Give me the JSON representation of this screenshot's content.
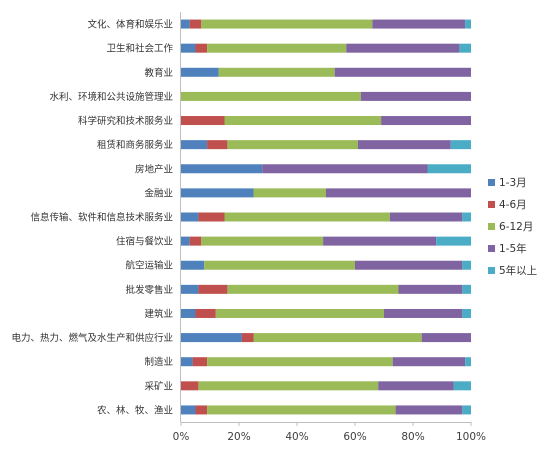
{
  "chart_data": {
    "type": "bar",
    "orientation": "horizontal",
    "stacked": "percent",
    "categories": [
      "文化、体育和娱乐业",
      "卫生和社会工作",
      "教育业",
      "水利、环境和公共设施管理业",
      "科学研究和技术服务业",
      "租赁和商务服务业",
      "房地产业",
      "金融业",
      "信息传输、软件和信息技术服务业",
      "住宿与餐饮业",
      "航空运输业",
      "批发零售业",
      "建筑业",
      "电力、热力、燃气及水生产和供应行业",
      "制造业",
      "采矿业",
      "农、林、牧、渔业"
    ],
    "series": [
      {
        "name": "1-3月",
        "color": "#4f81bd",
        "values": [
          3,
          5,
          13,
          0,
          0,
          9,
          28,
          25,
          6,
          3,
          8,
          6,
          5,
          21,
          4,
          0,
          5
        ]
      },
      {
        "name": "4-6月",
        "color": "#c0504d",
        "values": [
          4,
          4,
          0,
          0,
          15,
          7,
          0,
          0,
          9,
          4,
          0,
          10,
          7,
          4,
          5,
          6,
          4
        ]
      },
      {
        "name": "6-12月",
        "color": "#9bbb59",
        "values": [
          59,
          48,
          40,
          62,
          54,
          45,
          0,
          25,
          57,
          42,
          52,
          59,
          58,
          58,
          64,
          62,
          65
        ]
      },
      {
        "name": "1-5年",
        "color": "#8064a2",
        "values": [
          32,
          39,
          47,
          38,
          31,
          32,
          57,
          50,
          25,
          39,
          37,
          22,
          27,
          17,
          25,
          26,
          23
        ]
      },
      {
        "name": "5年以上",
        "color": "#4bacc6",
        "values": [
          2,
          4,
          0,
          0,
          0,
          7,
          15,
          0,
          3,
          12,
          3,
          3,
          3,
          0,
          2,
          6,
          3
        ]
      }
    ],
    "x_ticks": [
      "0%",
      "20%",
      "40%",
      "60%",
      "80%",
      "100%"
    ],
    "xlim": [
      0,
      100
    ],
    "grid": false,
    "legend_position": "right"
  }
}
